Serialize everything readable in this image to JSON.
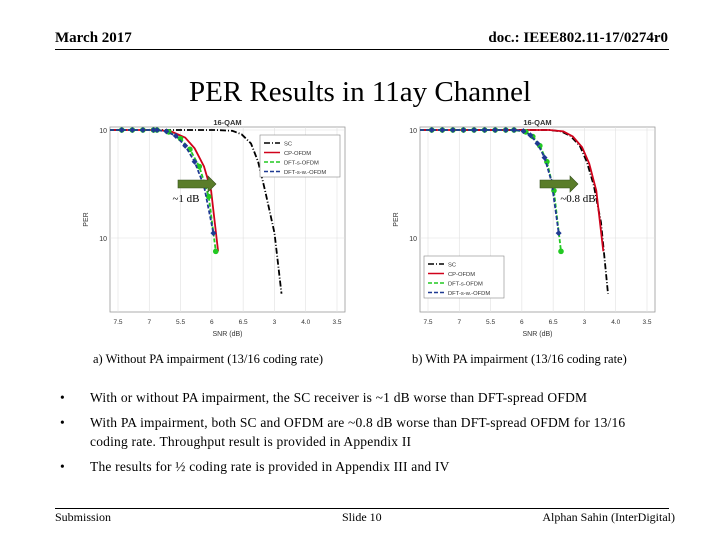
{
  "header": {
    "left": "March 2017",
    "right": "doc.: IEEE802.11-17/0274r0"
  },
  "title": "PER Results in 11ay Channel",
  "chart_data": [
    {
      "type": "line",
      "title": "16-QAM",
      "xlabel": "SNR (dB)",
      "ylabel": "PER",
      "x_ticks": [
        "7.5",
        "7",
        "5.5",
        "6",
        "6.5",
        "3",
        "4.0",
        "3.5"
      ],
      "y_ticks": [
        "10^0",
        "10^-1"
      ],
      "legend_position": "top-right",
      "legend": [
        "SC",
        "CP-OFDM",
        "DFT-s-OFDM",
        "DFT-s-w.-OFDM"
      ],
      "series": [
        {
          "name": "SC",
          "color": "#000000",
          "style": "dash-dot",
          "marker": "none",
          "points": [
            [
              0,
              1
            ],
            [
              0.45,
              1
            ],
            [
              0.52,
              0.97
            ],
            [
              0.56,
              0.85
            ],
            [
              0.6,
              0.6
            ],
            [
              0.63,
              0.3
            ],
            [
              0.66,
              0.1
            ],
            [
              0.7,
              0.02
            ],
            [
              0.73,
              0.002
            ]
          ]
        },
        {
          "name": "CP-OFDM",
          "color": "#d0021b",
          "style": "solid",
          "marker": "none",
          "points": [
            [
              0,
              1
            ],
            [
              0.2,
              1
            ],
            [
              0.26,
              0.95
            ],
            [
              0.32,
              0.75
            ],
            [
              0.36,
              0.5
            ],
            [
              0.4,
              0.25
            ],
            [
              0.43,
              0.1
            ],
            [
              0.46,
              0.01
            ]
          ]
        },
        {
          "name": "DFT-s-OFDM",
          "color": "#22c922",
          "style": "dashed",
          "marker": "circle",
          "points": [
            [
              0,
              1
            ],
            [
              0.2,
              1
            ],
            [
              0.25,
              0.93
            ],
            [
              0.3,
              0.72
            ],
            [
              0.34,
              0.48
            ],
            [
              0.38,
              0.25
            ],
            [
              0.42,
              0.08
            ],
            [
              0.45,
              0.01
            ]
          ]
        },
        {
          "name": "DFT-s-w.-OFDM",
          "color": "#1f3a93",
          "style": "dashed",
          "marker": "diamond",
          "points": [
            [
              0,
              1
            ],
            [
              0.2,
              1
            ],
            [
              0.24,
              0.95
            ],
            [
              0.28,
              0.8
            ],
            [
              0.32,
              0.55
            ],
            [
              0.36,
              0.3
            ],
            [
              0.4,
              0.12
            ],
            [
              0.44,
              0.02
            ]
          ]
        }
      ],
      "annotation": "~1 dB",
      "caption": "a) Without PA impairment (13/16 coding rate)"
    },
    {
      "type": "line",
      "title": "16-QAM",
      "xlabel": "SNR (dB)",
      "ylabel": "PER",
      "x_ticks": [
        "7.5",
        "7",
        "5.5",
        "6",
        "6.5",
        "3",
        "4.0",
        "3.5"
      ],
      "y_ticks": [
        "10^0",
        "10^-1"
      ],
      "legend_position": "bottom-left",
      "legend": [
        "SC",
        "CP-OFDM",
        "DFT-s-OFDM",
        "DFT-s-w.-OFDM"
      ],
      "series": [
        {
          "name": "SC",
          "color": "#000000",
          "style": "dash-dot",
          "marker": "none",
          "points": [
            [
              0,
              1
            ],
            [
              0.55,
              1
            ],
            [
              0.6,
              0.95
            ],
            [
              0.64,
              0.8
            ],
            [
              0.68,
              0.55
            ],
            [
              0.71,
              0.3
            ],
            [
              0.74,
              0.12
            ],
            [
              0.77,
              0.03
            ],
            [
              0.8,
              0.002
            ]
          ]
        },
        {
          "name": "CP-OFDM",
          "color": "#d0021b",
          "style": "solid",
          "marker": "none",
          "points": [
            [
              0,
              1
            ],
            [
              0.55,
              1
            ],
            [
              0.61,
              0.95
            ],
            [
              0.65,
              0.78
            ],
            [
              0.69,
              0.52
            ],
            [
              0.72,
              0.28
            ],
            [
              0.75,
              0.1
            ],
            [
              0.78,
              0.01
            ]
          ]
        },
        {
          "name": "DFT-s-OFDM",
          "color": "#22c922",
          "style": "dashed",
          "marker": "circle",
          "points": [
            [
              0,
              1
            ],
            [
              0.4,
              1
            ],
            [
              0.45,
              0.93
            ],
            [
              0.48,
              0.78
            ],
            [
              0.51,
              0.55
            ],
            [
              0.54,
              0.3
            ],
            [
              0.57,
              0.1
            ],
            [
              0.6,
              0.01
            ]
          ]
        },
        {
          "name": "DFT-s-w.-OFDM",
          "color": "#1f3a93",
          "style": "dashed",
          "marker": "diamond",
          "points": [
            [
              0,
              1
            ],
            [
              0.4,
              1
            ],
            [
              0.44,
              0.96
            ],
            [
              0.47,
              0.82
            ],
            [
              0.5,
              0.6
            ],
            [
              0.53,
              0.35
            ],
            [
              0.56,
              0.14
            ],
            [
              0.59,
              0.02
            ]
          ]
        }
      ],
      "annotation": "~0.8 dB",
      "caption": "b) With PA impairment (13/16 coding rate)"
    }
  ],
  "bullets": [
    "With or without PA impairment, the SC receiver is ~1 dB worse than DFT-spread OFDM",
    "With PA impairment, both SC and OFDM are ~0.8 dB worse than DFT-spread OFDM for 13/16 coding rate. Throughput result is provided in Appendix II",
    "The results for ½ coding rate is provided in Appendix III and IV"
  ],
  "footer": {
    "left": "Submission",
    "center": "Slide 10",
    "right": "Alphan Sahin (InterDigital)"
  }
}
